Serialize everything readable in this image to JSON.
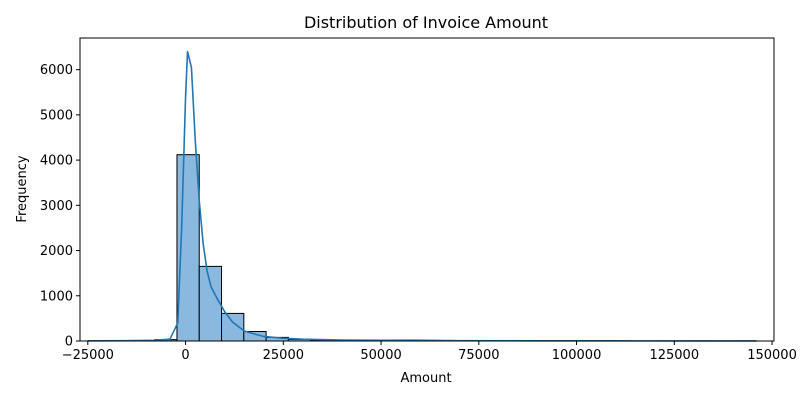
{
  "chart_data": {
    "type": "bar",
    "title": "Distribution of Invoice Amount",
    "xlabel": "Amount",
    "ylabel": "Frequency",
    "xlim": [
      -27000,
      150500
    ],
    "ylim": [
      0,
      6700
    ],
    "x_ticks": [
      -25000,
      0,
      25000,
      50000,
      75000,
      100000,
      125000,
      150000
    ],
    "x_tick_labels": [
      "−25000",
      "0",
      "25000",
      "50000",
      "75000",
      "100000",
      "125000",
      "150000"
    ],
    "y_ticks": [
      0,
      1000,
      2000,
      3000,
      4000,
      5000,
      6000
    ],
    "y_tick_labels": [
      "0",
      "1000",
      "2000",
      "3000",
      "4000",
      "5000",
      "6000"
    ],
    "grid": false,
    "bins": [
      {
        "x0": -25000,
        "x1": -19300,
        "count": 3
      },
      {
        "x0": -19300,
        "x1": -13600,
        "count": 4
      },
      {
        "x0": -13600,
        "x1": -7900,
        "count": 8
      },
      {
        "x0": -7900,
        "x1": -2200,
        "count": 30
      },
      {
        "x0": -2200,
        "x1": 3500,
        "count": 4120
      },
      {
        "x0": 3500,
        "x1": 9200,
        "count": 1650
      },
      {
        "x0": 9200,
        "x1": 14900,
        "count": 610
      },
      {
        "x0": 14900,
        "x1": 20600,
        "count": 210
      },
      {
        "x0": 20600,
        "x1": 26300,
        "count": 80
      },
      {
        "x0": 26300,
        "x1": 32000,
        "count": 35
      },
      {
        "x0": 32000,
        "x1": 37700,
        "count": 18
      },
      {
        "x0": 37700,
        "x1": 43400,
        "count": 10
      },
      {
        "x0": 43400,
        "x1": 49100,
        "count": 7
      },
      {
        "x0": 49100,
        "x1": 54800,
        "count": 8
      },
      {
        "x0": 54800,
        "x1": 60500,
        "count": 10
      },
      {
        "x0": 60500,
        "x1": 66200,
        "count": 5
      },
      {
        "x0": 66200,
        "x1": 71900,
        "count": 3
      },
      {
        "x0": 71900,
        "x1": 77600,
        "count": 2
      },
      {
        "x0": 77600,
        "x1": 83300,
        "count": 2
      },
      {
        "x0": 83300,
        "x1": 89000,
        "count": 1
      },
      {
        "x0": 89000,
        "x1": 94700,
        "count": 1
      },
      {
        "x0": 94700,
        "x1": 100400,
        "count": 1
      },
      {
        "x0": 100400,
        "x1": 106100,
        "count": 1
      },
      {
        "x0": 106100,
        "x1": 111800,
        "count": 1
      },
      {
        "x0": 111800,
        "x1": 117500,
        "count": 0
      },
      {
        "x0": 117500,
        "x1": 123200,
        "count": 1
      },
      {
        "x0": 123200,
        "x1": 128900,
        "count": 0
      },
      {
        "x0": 128900,
        "x1": 134600,
        "count": 1
      },
      {
        "x0": 134600,
        "x1": 140300,
        "count": 0
      },
      {
        "x0": 140300,
        "x1": 146000,
        "count": 1
      }
    ],
    "kde": {
      "x": [
        -25000,
        -15000,
        -8000,
        -4000,
        -2000,
        -1000,
        0,
        500,
        1500,
        2500,
        3500,
        4500,
        5500,
        6500,
        8000,
        10000,
        12000,
        15000,
        20000,
        25000,
        30000,
        40000,
        50000,
        58000,
        70000,
        90000,
        110000,
        130000,
        146000
      ],
      "y": [
        5,
        8,
        15,
        40,
        400,
        2500,
        5400,
        6400,
        6050,
        4400,
        3100,
        2150,
        1550,
        1200,
        950,
        650,
        420,
        220,
        100,
        60,
        40,
        20,
        15,
        18,
        8,
        4,
        3,
        2,
        1
      ]
    },
    "colors": {
      "bar_fill": "#8bb8de",
      "bar_edge": "#000000",
      "kde_line": "#1f77b4",
      "axes": "#000000"
    }
  }
}
